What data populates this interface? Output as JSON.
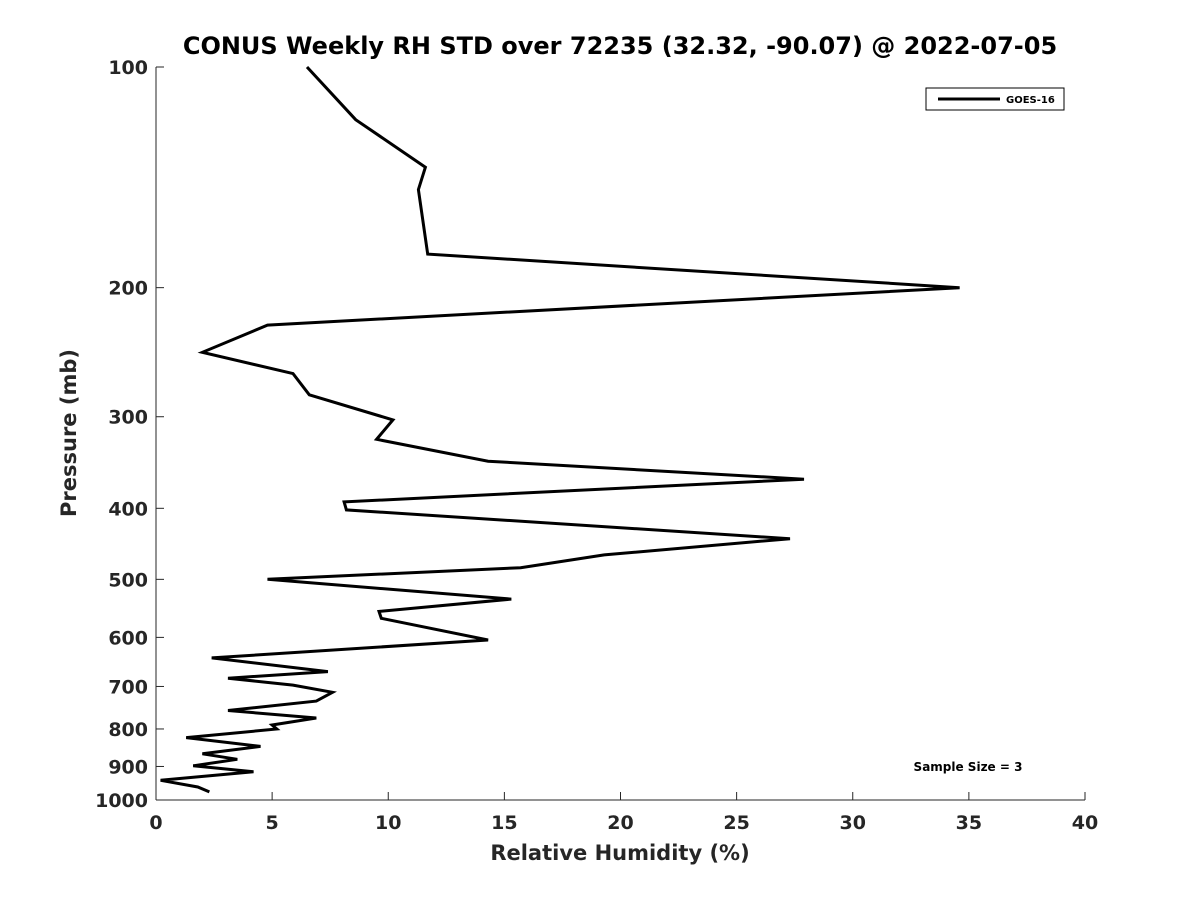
{
  "chart_data": {
    "type": "line",
    "title": "CONUS Weekly RH STD over 72235 (32.32, -90.07) @ 2022-07-05",
    "xlabel": "Relative Humidity (%)",
    "ylabel": "Pressure (mb)",
    "xlim": [
      0,
      40
    ],
    "ylim": [
      100,
      1000
    ],
    "yscale": "log",
    "y_reversed": true,
    "xticks": [
      0,
      5,
      10,
      15,
      20,
      25,
      30,
      35,
      40
    ],
    "yticks": [
      100,
      200,
      300,
      400,
      500,
      600,
      700,
      800,
      900,
      1000
    ],
    "grid": false,
    "legend": {
      "location": "top-right",
      "entries": [
        "GOES-16"
      ]
    },
    "annotation": "Sample Size = 3",
    "series": [
      {
        "name": "GOES-16",
        "color": "#000000",
        "x": [
          6.5,
          8.6,
          11.6,
          11.3,
          11.7,
          34.6,
          4.8,
          2.0,
          5.9,
          6.6,
          10.2,
          9.5,
          14.3,
          27.9,
          8.1,
          8.2,
          27.3,
          19.3,
          15.7,
          4.8,
          15.3,
          9.6,
          9.7,
          14.3,
          2.4,
          7.4,
          3.1,
          5.9,
          7.6,
          6.9,
          3.1,
          6.9,
          5.0,
          5.2,
          1.3,
          4.5,
          2.0,
          3.5,
          1.6,
          4.2,
          0.2,
          1.8,
          2.3
        ],
        "y": [
          100,
          118,
          137,
          147,
          180,
          200,
          225,
          245,
          262,
          280,
          303,
          322,
          345,
          365,
          392,
          402,
          440,
          463,
          482,
          500,
          532,
          553,
          565,
          605,
          640,
          668,
          682,
          697,
          713,
          733,
          755,
          773,
          790,
          800,
          822,
          845,
          865,
          880,
          898,
          915,
          940,
          960,
          975
        ]
      }
    ]
  }
}
